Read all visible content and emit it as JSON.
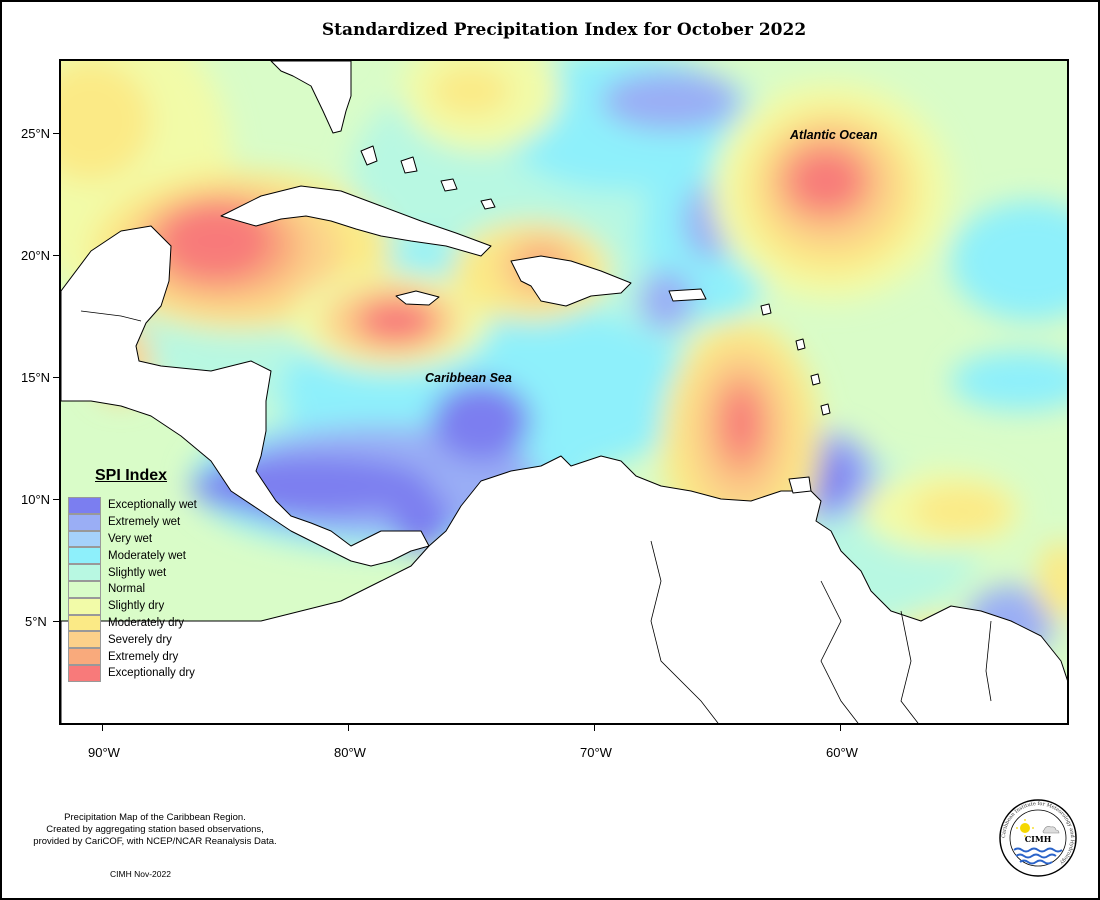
{
  "title": "Standardized Precipitation Index for October 2022",
  "axes": {
    "lat_labels": [
      "25°N",
      "20°N",
      "15°N",
      "10°N",
      "5°N"
    ],
    "lon_labels": [
      "90°W",
      "80°W",
      "70°W",
      "60°W"
    ]
  },
  "map_labels": {
    "atlantic": "Atlantic Ocean",
    "caribbean": "Caribbean Sea"
  },
  "legend": {
    "title": "SPI Index",
    "items": [
      {
        "label": "Exceptionally wet",
        "color": "#7b7ef0"
      },
      {
        "label": "Extremely wet",
        "color": "#9aaef5"
      },
      {
        "label": "Very wet",
        "color": "#a5d2fb"
      },
      {
        "label": "Moderately wet",
        "color": "#8ef0fb"
      },
      {
        "label": "Slightly wet",
        "color": "#b8f8e2"
      },
      {
        "label": "Normal",
        "color": "#d9fcc8"
      },
      {
        "label": "Slightly dry",
        "color": "#f2fba8"
      },
      {
        "label": "Moderately dry",
        "color": "#fbea86"
      },
      {
        "label": "Severely dry",
        "color": "#fcd18a"
      },
      {
        "label": "Extremely dry",
        "color": "#f9aa7c"
      },
      {
        "label": "Exceptionally dry",
        "color": "#f87a7a"
      }
    ]
  },
  "credit": {
    "line1": "Precipitation Map of the Caribbean Region.",
    "line2": "Created by aggregating station based observations,",
    "line3": "provided by CariCOF, with NCEP/NCAR Reanalysis Data.",
    "date": "CIMH Nov-2022"
  },
  "logo": {
    "text": "CIMH",
    "ring_text": "Caribbean Institute for Meteorology and Hydrology"
  }
}
